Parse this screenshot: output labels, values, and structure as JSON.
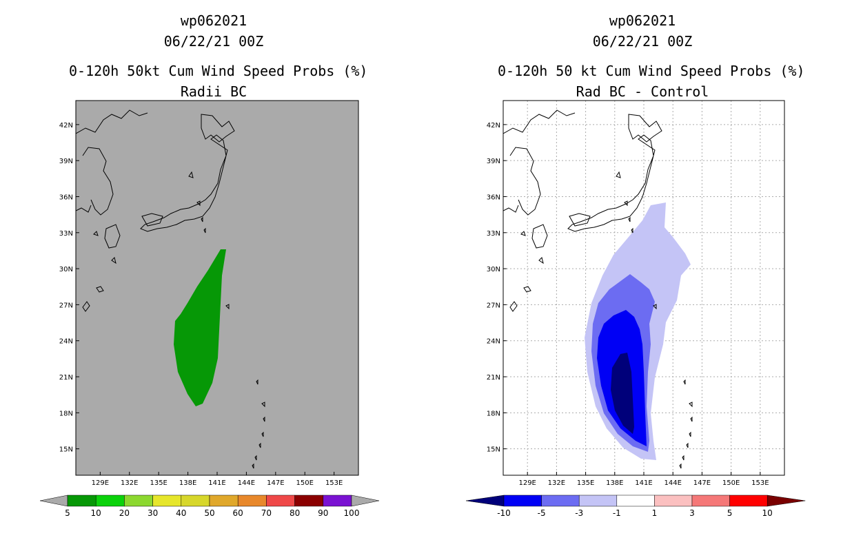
{
  "panels": [
    {
      "storm_id": "wp062021",
      "datetime": "06/22/21 00Z",
      "product": "0-120h 50kt Cum Wind Speed Probs (%)",
      "subtitle": "Radii BC",
      "background": "#aaaaaa",
      "colorbar": {
        "labels": [
          "5",
          "10",
          "20",
          "30",
          "40",
          "50",
          "60",
          "70",
          "80",
          "90",
          "100"
        ],
        "colors": [
          "#069806",
          "#0bd20b",
          "#8cd82f",
          "#e6e62b",
          "#d7d72b",
          "#e0a82b",
          "#e8882b",
          "#ef4848",
          "#8b0000",
          "#7a12d2"
        ],
        "end_color": "#aaaaaa"
      }
    },
    {
      "storm_id": "wp062021",
      "datetime": "06/22/21 00Z",
      "product": "0-120h 50 kt Cum Wind Speed Probs (%)",
      "subtitle": "Rad BC - Control",
      "background": "#ffffff",
      "colorbar": {
        "labels": [
          "-10",
          "-5",
          "-3",
          "-1",
          "1",
          "3",
          "5",
          "10"
        ],
        "colors": [
          "#0000f5",
          "#6c6cf2",
          "#c4c4f6",
          "#ffffff",
          "#fbc0c0",
          "#f57878",
          "#ff0000"
        ],
        "left_end_color": "#00007a",
        "right_end_color": "#7a0000"
      }
    }
  ],
  "axes": {
    "lat_labels": [
      "42N",
      "39N",
      "36N",
      "33N",
      "30N",
      "27N",
      "24N",
      "21N",
      "18N",
      "15N"
    ],
    "lon_labels": [
      "129E",
      "132E",
      "135E",
      "138E",
      "141E",
      "144E",
      "147E",
      "150E",
      "153E"
    ],
    "lat_values": [
      42,
      39,
      36,
      33,
      30,
      27,
      24,
      21,
      18,
      15
    ],
    "lon_values": [
      129,
      132,
      135,
      138,
      141,
      144,
      147,
      150,
      153
    ]
  }
}
